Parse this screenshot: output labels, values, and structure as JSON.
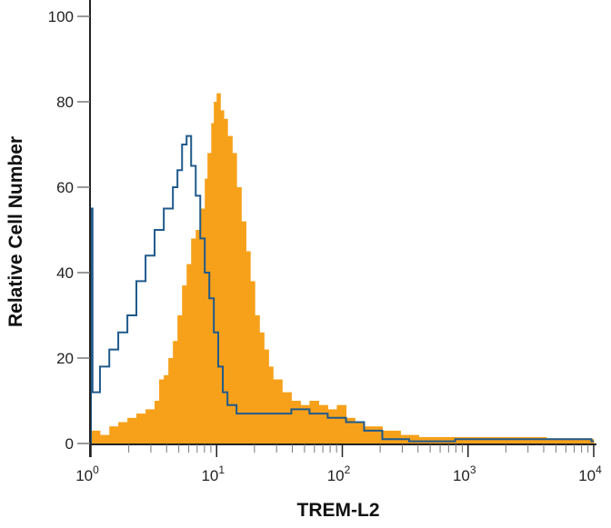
{
  "chart_data": {
    "type": "histogram",
    "title": "",
    "xlabel": "TREM-L2",
    "ylabel": "Relative Cell Number",
    "x_scale": "log",
    "xlim": [
      1,
      10000
    ],
    "ylim": [
      0,
      100
    ],
    "x_ticks": [
      {
        "base": "10",
        "exp": "0",
        "value": 1
      },
      {
        "base": "10",
        "exp": "1",
        "value": 10
      },
      {
        "base": "10",
        "exp": "2",
        "value": 100
      },
      {
        "base": "10",
        "exp": "3",
        "value": 1000
      },
      {
        "base": "10",
        "exp": "4",
        "value": 10000
      }
    ],
    "y_ticks": [
      "0",
      "20",
      "40",
      "60",
      "80",
      "100"
    ],
    "grid": false,
    "series": [
      {
        "style": "filled",
        "color": "#f7a11a",
        "points": [
          [
            1.0,
            3
          ],
          [
            1.18,
            2
          ],
          [
            1.4,
            4
          ],
          [
            1.65,
            5
          ],
          [
            1.95,
            6
          ],
          [
            2.3,
            7
          ],
          [
            2.72,
            8
          ],
          [
            3.21,
            10
          ],
          [
            3.49,
            15
          ],
          [
            3.8,
            16
          ],
          [
            4.13,
            20
          ],
          [
            4.49,
            24
          ],
          [
            4.88,
            30
          ],
          [
            5.31,
            37
          ],
          [
            5.77,
            42
          ],
          [
            6.27,
            48
          ],
          [
            6.82,
            50
          ],
          [
            7.41,
            55
          ],
          [
            8.05,
            62
          ],
          [
            8.46,
            68
          ],
          [
            9.06,
            75
          ],
          [
            9.5,
            80
          ],
          [
            10.0,
            82
          ],
          [
            10.7,
            78
          ],
          [
            11.4,
            76
          ],
          [
            12.2,
            72
          ],
          [
            13.3,
            68
          ],
          [
            14.4,
            60
          ],
          [
            15.7,
            52
          ],
          [
            17.1,
            45
          ],
          [
            18.5,
            38
          ],
          [
            20.1,
            30
          ],
          [
            21.9,
            26
          ],
          [
            23.8,
            22
          ],
          [
            25.9,
            18
          ],
          [
            28.1,
            15
          ],
          [
            33.2,
            12
          ],
          [
            39.3,
            10
          ],
          [
            46.4,
            9
          ],
          [
            54.8,
            10
          ],
          [
            64.8,
            9
          ],
          [
            76.5,
            8
          ],
          [
            90.4,
            9
          ],
          [
            107,
            6
          ],
          [
            126,
            5
          ],
          [
            149,
            4
          ],
          [
            208,
            3
          ],
          [
            290,
            2
          ],
          [
            405,
            1.5
          ],
          [
            790,
            1.5
          ],
          [
            1830,
            1.5
          ],
          [
            4200,
            1.2
          ],
          [
            9600,
            1
          ]
        ]
      },
      {
        "style": "outline",
        "color": "#1f5a8c",
        "points": [
          [
            1.0,
            55
          ],
          [
            1.03,
            12
          ],
          [
            1.18,
            18
          ],
          [
            1.4,
            22
          ],
          [
            1.65,
            26
          ],
          [
            1.95,
            30
          ],
          [
            2.3,
            38
          ],
          [
            2.72,
            44
          ],
          [
            3.21,
            50
          ],
          [
            3.8,
            55
          ],
          [
            4.49,
            60
          ],
          [
            4.88,
            64
          ],
          [
            5.31,
            70
          ],
          [
            5.77,
            72
          ],
          [
            6.27,
            65
          ],
          [
            6.82,
            58
          ],
          [
            7.41,
            48
          ],
          [
            8.05,
            40
          ],
          [
            8.75,
            34
          ],
          [
            9.5,
            26
          ],
          [
            10.3,
            18
          ],
          [
            11.2,
            12
          ],
          [
            12.2,
            9
          ],
          [
            14.4,
            7
          ],
          [
            17.1,
            7
          ],
          [
            20.1,
            7
          ],
          [
            28.1,
            7
          ],
          [
            39.3,
            8
          ],
          [
            54.8,
            7
          ],
          [
            76.5,
            6
          ],
          [
            107,
            5
          ],
          [
            149,
            3
          ],
          [
            208,
            1
          ],
          [
            340,
            0.5
          ],
          [
            790,
            1
          ],
          [
            1830,
            1
          ],
          [
            4200,
            1
          ],
          [
            9600,
            0.5
          ]
        ]
      }
    ]
  }
}
